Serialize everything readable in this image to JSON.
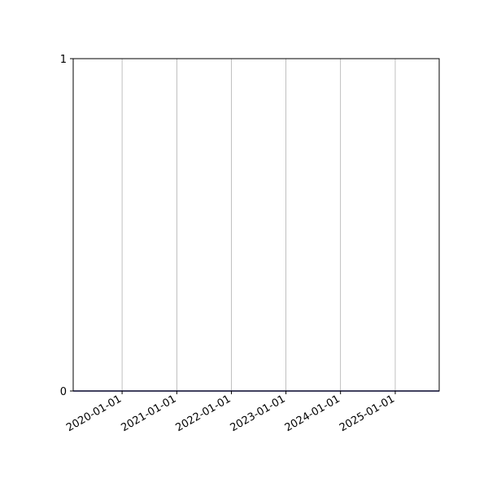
{
  "chart_data": {
    "type": "line",
    "title": "",
    "xlabel": "",
    "ylabel": "",
    "x_axis_type": "date",
    "xlim": [
      "2019-02-08",
      "2025-10-22"
    ],
    "ylim": [
      0,
      1
    ],
    "x_ticks": [
      "2020-01-01",
      "2021-01-01",
      "2022-01-01",
      "2023-01-01",
      "2024-01-01",
      "2025-01-01"
    ],
    "y_ticks": [
      "0",
      "1"
    ],
    "grid": "x-axis vertical gridlines",
    "legend": "none",
    "series": [
      {
        "x": [
          "2019-02-08",
          "2025-10-22"
        ],
        "values": [
          0,
          0
        ],
        "color": "#0a0a80"
      }
    ]
  }
}
